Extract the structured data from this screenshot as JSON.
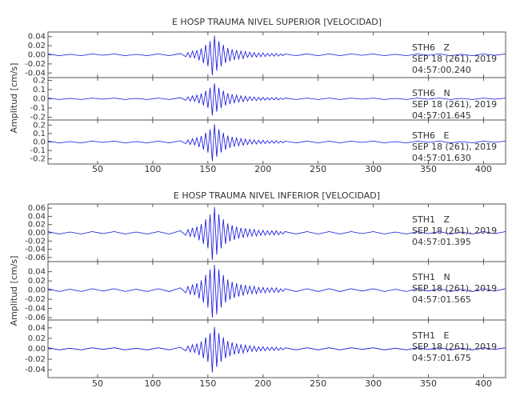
{
  "chart_data": [
    {
      "type": "line",
      "title": "E HOSP TRAUMA NIVEL SUPERIOR [VELOCIDAD]",
      "ylabel": "Amplitud [cm/s]",
      "color": "#1010e0",
      "xlim": [
        5,
        420
      ],
      "xticks": [
        50,
        100,
        150,
        200,
        250,
        300,
        350,
        400
      ],
      "x": [
        5,
        15,
        25,
        35,
        45,
        55,
        65,
        75,
        85,
        95,
        105,
        115,
        125,
        130,
        132,
        134,
        136,
        138,
        140,
        142,
        144,
        146,
        148,
        150,
        152,
        154,
        156,
        158,
        160,
        162,
        164,
        166,
        168,
        170,
        172,
        174,
        176,
        178,
        180,
        182,
        184,
        186,
        188,
        190,
        192,
        194,
        196,
        198,
        200,
        202,
        204,
        206,
        208,
        210,
        212,
        214,
        216,
        218,
        220,
        230,
        240,
        250,
        260,
        270,
        280,
        290,
        300,
        310,
        320,
        330,
        340,
        350,
        360,
        370,
        380,
        390,
        400,
        410,
        420
      ],
      "panels": [
        {
          "station": "STH6   Z",
          "date": "SEP 18 (261), 2019",
          "time": "04:57:00.240",
          "ylim": [
            -0.05,
            0.05
          ],
          "yticks": [
            0.04,
            0.02,
            {
              "value": 0,
              "label": "0.00"
            },
            -0.02,
            -0.04
          ],
          "values": [
            0.002,
            -0.002,
            0.001,
            -0.002,
            0.002,
            -0.001,
            0.002,
            -0.002,
            0.001,
            -0.002,
            0.002,
            -0.002,
            0.003,
            -0.004,
            0.005,
            -0.006,
            0.008,
            -0.007,
            0.01,
            -0.012,
            0.014,
            -0.018,
            0.022,
            -0.025,
            0.03,
            -0.045,
            0.042,
            -0.035,
            0.03,
            -0.025,
            0.022,
            -0.018,
            0.015,
            -0.014,
            0.012,
            -0.011,
            0.01,
            -0.009,
            0.008,
            -0.008,
            0.007,
            -0.006,
            0.006,
            -0.005,
            0.005,
            -0.005,
            0.004,
            -0.004,
            0.004,
            -0.004,
            0.003,
            -0.003,
            0.003,
            -0.003,
            0.003,
            -0.003,
            0.002,
            -0.002,
            0.002,
            -0.002,
            0.002,
            -0.002,
            0.002,
            -0.002,
            0.002,
            -0.001,
            0.002,
            -0.002,
            0.001,
            -0.002,
            0.002,
            -0.001,
            0.002,
            -0.002,
            0.001,
            -0.002,
            0.002,
            -0.001,
            0.002
          ]
        },
        {
          "station": "STH6   N",
          "date": "SEP 18 (261), 2019",
          "time": "04:57:01.645",
          "ylim": [
            -0.23,
            0.23
          ],
          "yticks": [
            0.2,
            0.1,
            {
              "value": 0,
              "label": "0.0"
            },
            -0.1,
            -0.2
          ],
          "values": [
            0.008,
            -0.008,
            0.004,
            -0.008,
            0.008,
            -0.004,
            0.008,
            -0.008,
            0.004,
            -0.008,
            0.008,
            -0.008,
            0.012,
            -0.016,
            0.02,
            -0.024,
            0.032,
            -0.028,
            0.04,
            -0.048,
            0.056,
            -0.072,
            0.088,
            -0.1,
            0.12,
            -0.18,
            0.168,
            -0.14,
            0.12,
            -0.1,
            0.088,
            -0.072,
            0.06,
            -0.056,
            0.048,
            -0.044,
            0.04,
            -0.036,
            0.032,
            -0.032,
            0.028,
            -0.024,
            0.024,
            -0.02,
            0.02,
            -0.02,
            0.016,
            -0.016,
            0.016,
            -0.016,
            0.012,
            -0.012,
            0.012,
            -0.012,
            0.012,
            -0.012,
            0.008,
            -0.008,
            0.008,
            -0.008,
            0.008,
            -0.008,
            0.008,
            -0.008,
            0.008,
            -0.004,
            0.008,
            -0.008,
            0.004,
            -0.008,
            0.008,
            -0.004,
            0.008,
            -0.008,
            0.004,
            -0.008,
            0.008,
            -0.004,
            0.008
          ]
        },
        {
          "station": "STH6   E",
          "date": "SEP 18 (261), 2019",
          "time": "04:57:01.630",
          "ylim": [
            -0.26,
            0.26
          ],
          "yticks": [
            0.2,
            0.1,
            {
              "value": 0,
              "label": "0.0"
            },
            -0.1,
            -0.2
          ],
          "values": [
            0.01,
            -0.01,
            0.005,
            -0.01,
            0.01,
            -0.005,
            0.01,
            -0.01,
            0.005,
            -0.01,
            0.01,
            -0.01,
            0.015,
            -0.02,
            0.025,
            -0.03,
            0.04,
            -0.035,
            0.05,
            -0.06,
            0.07,
            -0.09,
            0.11,
            -0.125,
            0.15,
            -0.225,
            0.21,
            -0.175,
            0.15,
            -0.125,
            0.11,
            -0.09,
            0.075,
            -0.07,
            0.06,
            -0.055,
            0.05,
            -0.045,
            0.04,
            -0.04,
            0.035,
            -0.03,
            0.03,
            -0.025,
            0.025,
            -0.025,
            0.02,
            -0.02,
            0.02,
            -0.02,
            0.015,
            -0.015,
            0.015,
            -0.015,
            0.015,
            -0.015,
            0.01,
            -0.01,
            0.01,
            -0.01,
            0.01,
            -0.01,
            0.01,
            -0.01,
            0.01,
            -0.005,
            0.01,
            -0.01,
            0.005,
            -0.01,
            0.01,
            -0.005,
            0.01,
            -0.01,
            0.005,
            -0.01,
            0.01,
            -0.005,
            0.01
          ]
        }
      ]
    },
    {
      "type": "line",
      "title": "E HOSP TRAUMA NIVEL INFERIOR [VELOCIDAD]",
      "ylabel": "Amplitud [cm/s]",
      "color": "#1010e0",
      "xlim": [
        5,
        420
      ],
      "xticks": [
        50,
        100,
        150,
        200,
        250,
        300,
        350,
        400
      ],
      "x": [
        5,
        15,
        25,
        35,
        45,
        55,
        65,
        75,
        85,
        95,
        105,
        115,
        125,
        130,
        132,
        134,
        136,
        138,
        140,
        142,
        144,
        146,
        148,
        150,
        152,
        154,
        156,
        158,
        160,
        162,
        164,
        166,
        168,
        170,
        172,
        174,
        176,
        178,
        180,
        182,
        184,
        186,
        188,
        190,
        192,
        194,
        196,
        198,
        200,
        202,
        204,
        206,
        208,
        210,
        212,
        214,
        216,
        218,
        220,
        230,
        240,
        250,
        260,
        270,
        280,
        290,
        300,
        310,
        320,
        330,
        340,
        350,
        360,
        370,
        380,
        390,
        400,
        410,
        420
      ],
      "panels": [
        {
          "station": "STH1   Z",
          "date": "SEP 18 (261), 2019",
          "time": "04:57:01.395",
          "ylim": [
            -0.07,
            0.07
          ],
          "yticks": [
            0.06,
            0.04,
            0.02,
            {
              "value": 0,
              "label": "0.00"
            },
            -0.02,
            -0.04,
            -0.06
          ],
          "values": [
            0.003,
            -0.003,
            0.002,
            -0.003,
            0.003,
            -0.002,
            0.003,
            -0.003,
            0.002,
            -0.003,
            0.003,
            -0.003,
            0.005,
            -0.006,
            0.008,
            -0.009,
            0.012,
            -0.011,
            0.015,
            -0.018,
            0.021,
            -0.027,
            0.033,
            -0.038,
            0.045,
            -0.066,
            0.063,
            -0.053,
            0.045,
            -0.038,
            0.033,
            -0.027,
            0.023,
            -0.021,
            0.018,
            -0.017,
            0.015,
            -0.014,
            0.012,
            -0.012,
            0.011,
            -0.009,
            0.009,
            -0.008,
            0.008,
            -0.008,
            0.006,
            -0.006,
            0.006,
            -0.006,
            0.005,
            -0.005,
            0.005,
            -0.005,
            0.005,
            -0.005,
            0.003,
            -0.003,
            0.003,
            -0.003,
            0.003,
            -0.003,
            0.003,
            -0.003,
            0.003,
            -0.002,
            0.003,
            -0.003,
            0.002,
            -0.003,
            0.003,
            -0.002,
            0.003,
            -0.003,
            0.002,
            -0.003,
            0.003,
            -0.002,
            0.003
          ]
        },
        {
          "station": "STH1   N",
          "date": "SEP 18 (261), 2019",
          "time": "04:57:01.565",
          "ylim": [
            -0.065,
            0.062
          ],
          "yticks": [
            0.04,
            0.02,
            {
              "value": 0,
              "label": "0.00"
            },
            -0.02,
            -0.04,
            -0.06
          ],
          "values": [
            0.003,
            -0.003,
            0.002,
            -0.003,
            0.003,
            -0.002,
            0.003,
            -0.003,
            0.002,
            -0.003,
            0.003,
            -0.003,
            0.005,
            -0.006,
            0.008,
            -0.009,
            0.012,
            -0.011,
            0.015,
            -0.018,
            0.021,
            -0.027,
            0.033,
            -0.038,
            0.045,
            -0.06,
            0.055,
            -0.053,
            0.045,
            -0.038,
            0.033,
            -0.027,
            0.023,
            -0.021,
            0.018,
            -0.017,
            0.015,
            -0.014,
            0.012,
            -0.012,
            0.011,
            -0.009,
            0.009,
            -0.008,
            0.008,
            -0.008,
            0.006,
            -0.006,
            0.006,
            -0.006,
            0.005,
            -0.005,
            0.005,
            -0.005,
            0.005,
            -0.005,
            0.003,
            -0.003,
            0.003,
            -0.003,
            0.003,
            -0.003,
            0.003,
            -0.003,
            0.003,
            -0.002,
            0.003,
            -0.003,
            0.002,
            -0.003,
            0.003,
            -0.002,
            0.003,
            -0.003,
            0.002,
            -0.003,
            0.003,
            -0.002,
            0.003
          ]
        },
        {
          "station": "STH1   E",
          "date": "SEP 18 (261), 2019",
          "time": "04:57:01.675",
          "ylim": [
            -0.055,
            0.055
          ],
          "yticks": [
            0.04,
            0.02,
            {
              "value": 0,
              "label": "0.00"
            },
            -0.02,
            -0.04
          ],
          "values": [
            0.002,
            -0.002,
            0.001,
            -0.002,
            0.002,
            -0.001,
            0.002,
            -0.002,
            0.001,
            -0.002,
            0.002,
            -0.002,
            0.003,
            -0.004,
            0.005,
            -0.006,
            0.008,
            -0.007,
            0.01,
            -0.012,
            0.014,
            -0.018,
            0.022,
            -0.025,
            0.03,
            -0.045,
            0.042,
            -0.035,
            0.03,
            -0.025,
            0.022,
            -0.018,
            0.015,
            -0.014,
            0.012,
            -0.011,
            0.01,
            -0.009,
            0.008,
            -0.008,
            0.007,
            -0.006,
            0.006,
            -0.005,
            0.005,
            -0.005,
            0.004,
            -0.004,
            0.004,
            -0.004,
            0.003,
            -0.003,
            0.003,
            -0.003,
            0.003,
            -0.003,
            0.002,
            -0.002,
            0.002,
            -0.002,
            0.002,
            -0.002,
            0.002,
            -0.002,
            0.002,
            -0.001,
            0.002,
            -0.002,
            0.001,
            -0.002,
            0.002,
            -0.001,
            0.002,
            -0.002,
            0.001,
            -0.002,
            0.002,
            -0.001,
            0.002
          ]
        }
      ]
    }
  ]
}
